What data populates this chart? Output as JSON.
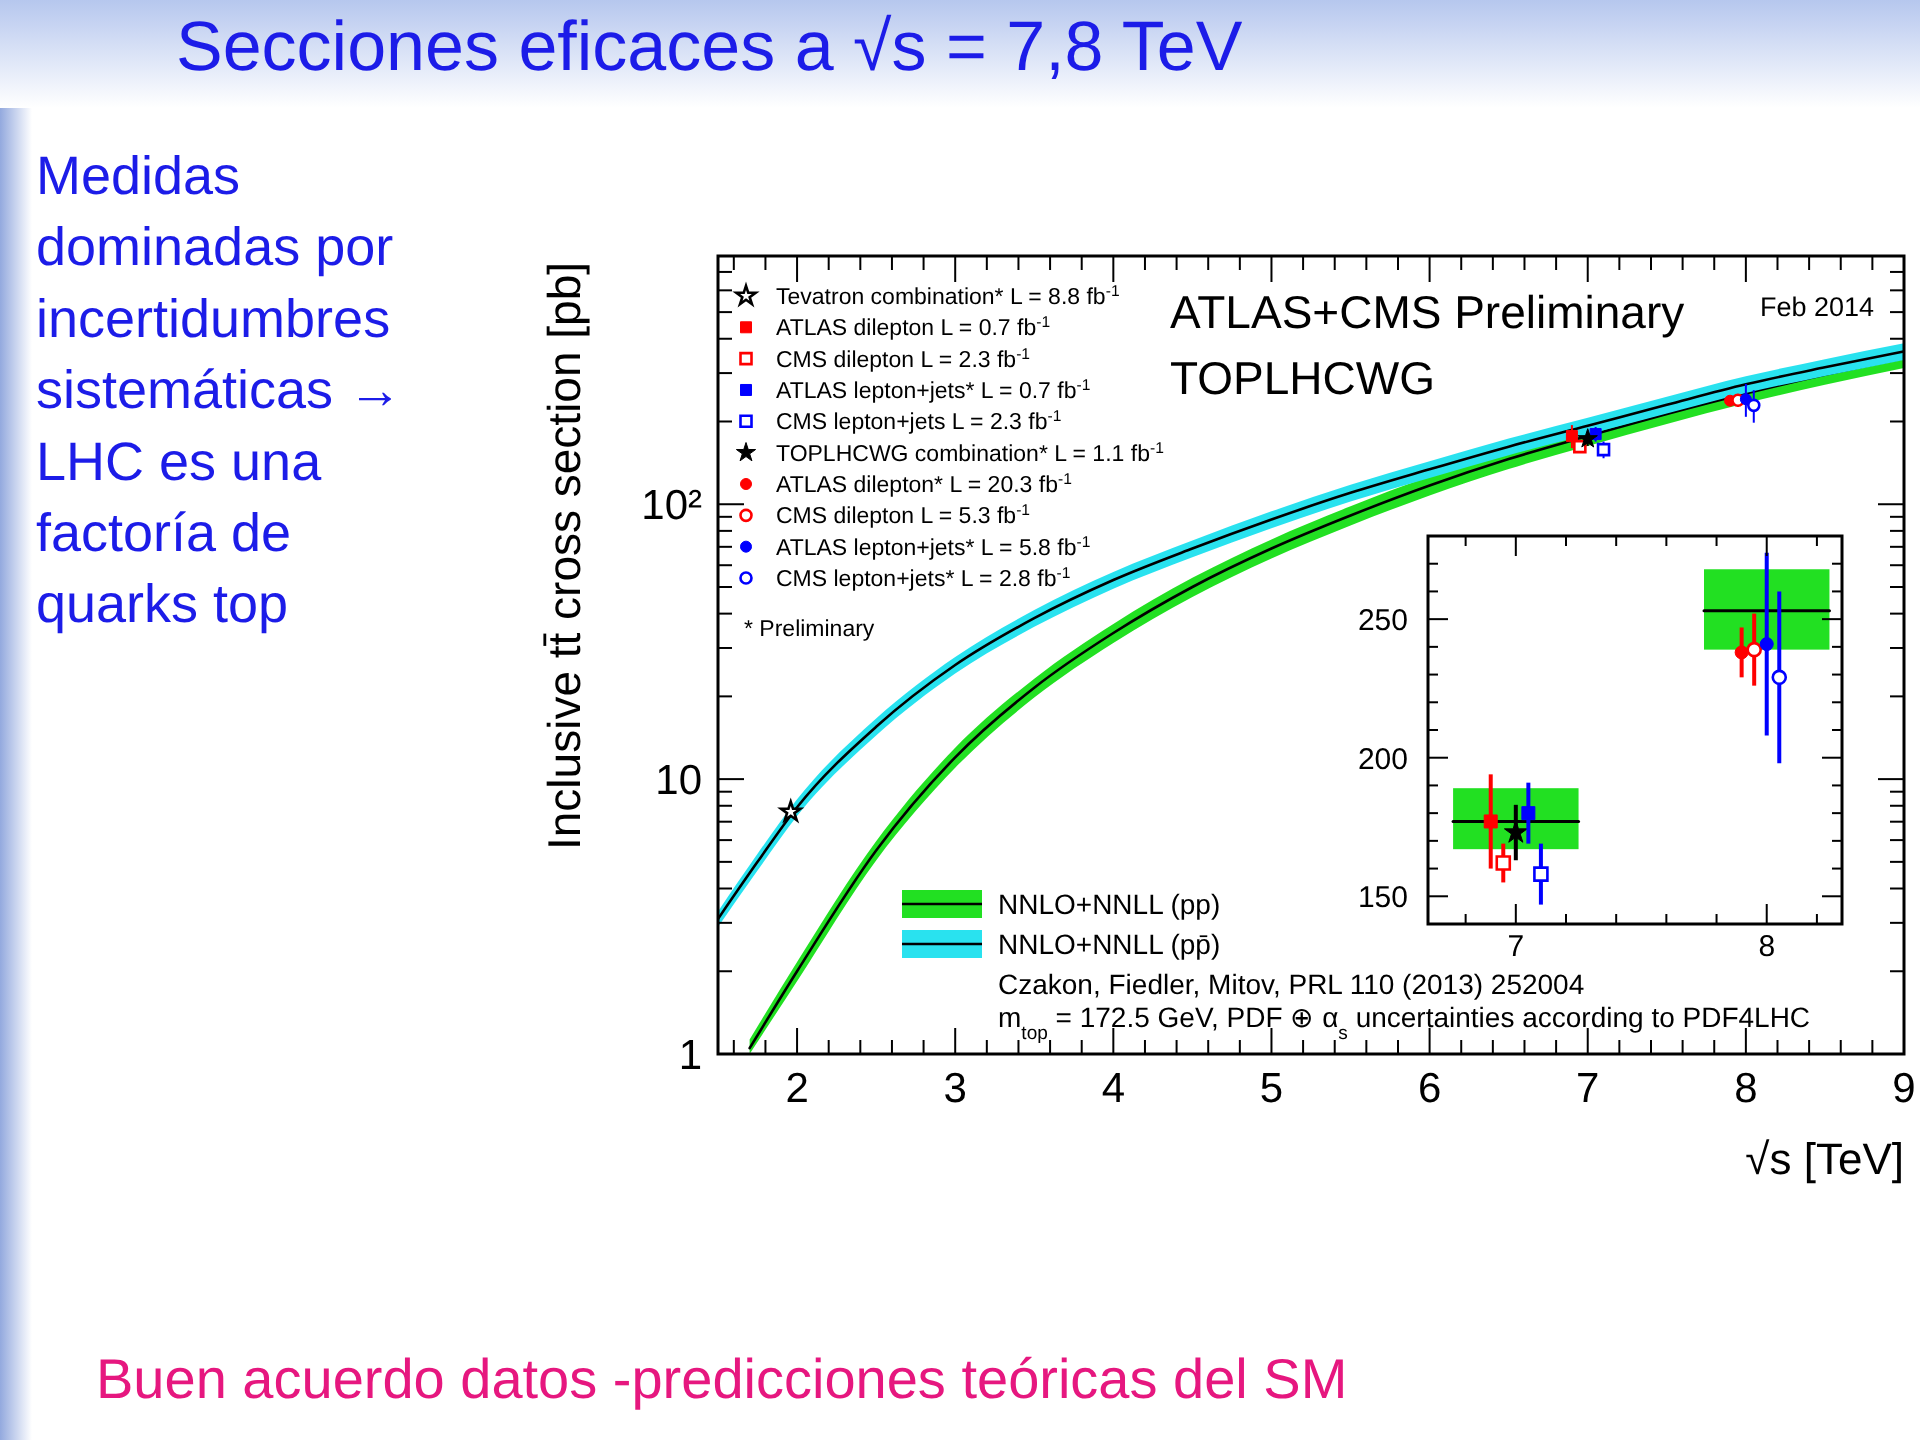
{
  "chart_data": [
    {
      "type": "line",
      "title": "Secciones eficaces a √s = 7,8 TeV",
      "xlabel": "√s [TeV]",
      "ylabel": "Inclusive tt̄ cross section [pb]",
      "log": "y",
      "xlim": [
        1.5,
        9
      ],
      "ylim": [
        1,
        800
      ],
      "xticks": [
        {
          "value": 1.6,
          "label": null
        },
        {
          "value": 1.8,
          "label": null
        },
        2,
        {
          "value": 2.2,
          "label": null
        },
        {
          "value": 2.4,
          "label": null
        },
        {
          "value": 2.6,
          "label": null
        },
        {
          "value": 2.8,
          "label": null
        },
        3,
        {
          "value": 3.2,
          "label": null
        },
        {
          "value": 3.4,
          "label": null
        },
        {
          "value": 3.6,
          "label": null
        },
        {
          "value": 3.8,
          "label": null
        },
        4,
        {
          "value": 4.2,
          "label": null
        },
        {
          "value": 4.4,
          "label": null
        },
        {
          "value": 4.6,
          "label": null
        },
        {
          "value": 4.8,
          "label": null
        },
        5,
        {
          "value": 5.2,
          "label": null
        },
        {
          "value": 5.4,
          "label": null
        },
        {
          "value": 5.6,
          "label": null
        },
        {
          "value": 5.8,
          "label": null
        },
        6,
        {
          "value": 6.2,
          "label": null
        },
        {
          "value": 6.4,
          "label": null
        },
        {
          "value": 6.6,
          "label": null
        },
        {
          "value": 6.8,
          "label": null
        },
        7,
        {
          "value": 7.2,
          "label": null
        },
        {
          "value": 7.4,
          "label": null
        },
        {
          "value": 7.6,
          "label": null
        },
        {
          "value": 7.8,
          "label": null
        },
        8,
        {
          "value": 8.2,
          "label": null
        },
        {
          "value": 8.4,
          "label": null
        },
        {
          "value": 8.6,
          "label": null
        },
        {
          "value": 8.8,
          "label": null
        },
        9
      ],
      "yticks": [
        1,
        {
          "value": 2,
          "label": null
        },
        {
          "value": 3,
          "label": null
        },
        {
          "value": 4,
          "label": null
        },
        {
          "value": 5,
          "label": null
        },
        {
          "value": 6,
          "label": null
        },
        {
          "value": 7,
          "label": null
        },
        {
          "value": 8,
          "label": null
        },
        {
          "value": 9,
          "label": null
        },
        10,
        {
          "value": 20,
          "label": null
        },
        {
          "value": 30,
          "label": null
        },
        {
          "value": 40,
          "label": null
        },
        {
          "value": 50,
          "label": null
        },
        {
          "value": 60,
          "label": null
        },
        {
          "value": 70,
          "label": null
        },
        {
          "value": 80,
          "label": null
        },
        {
          "value": 90,
          "label": null
        },
        {
          "value": 100,
          "label": "10²"
        },
        {
          "value": 200,
          "label": null
        },
        {
          "value": 300,
          "label": null
        },
        {
          "value": 400,
          "label": null
        },
        {
          "value": 500,
          "label": null
        },
        {
          "value": 600,
          "label": null
        },
        {
          "value": 700,
          "label": null
        }
      ],
      "legend": "top left",
      "annotations": [
        "ATLAS+CMS Preliminary",
        "TOPLHCWG",
        "Feb 2014",
        "* Preliminary",
        "Czakon, Fiedler, Mitov, PRL 110 (2013) 252004",
        "m$_{top}$ = 172.5 GeV, PDF ⊕ α$_{s}$ uncertainties according to PDF4LHC",
        "Medidas dominadas por incertidumbres sistemáticas → LHC es una factoría de quarks top",
        "Buen acuerdo datos -predicciones teóricas del SM"
      ],
      "series": [
        {
          "name": "NNLO+NNLL (pp)",
          "color": "#000000",
          "colors": [
            "#22e022",
            "#22e022",
            "#22e022",
            "#22e022",
            "#22e022",
            "#22e022",
            "#22e022",
            "#22e022",
            "#22e022",
            "#22e022",
            "#22e022",
            "#22e022",
            "#22e022",
            "#22e022",
            "#22e022",
            "#22e022"
          ],
          "x": [
            1.7,
            2,
            2.5,
            3,
            3.5,
            4,
            4.5,
            5,
            5.5,
            6,
            6.5,
            7,
            7.5,
            8,
            8.5,
            9
          ],
          "values": [
            1.05,
            2.0,
            5.5,
            12,
            21.5,
            34,
            50,
            69,
            91,
            117,
            146,
            177,
            213,
            253,
            296,
            340
          ],
          "lower": [
            1.0,
            1.84,
            5.06,
            11.0,
            19.8,
            31.3,
            46,
            63.5,
            83.7,
            107.6,
            134.3,
            163,
            196,
            233,
            272,
            313
          ],
          "upper": [
            1.13,
            2.16,
            5.94,
            13.0,
            23.2,
            36.7,
            54,
            74.5,
            98.3,
            126.4,
            157.7,
            191,
            230,
            273,
            320,
            367
          ]
        },
        {
          "name": "NNLO+NNLL (pp̄)",
          "color": "#000000",
          "colors": [
            "#29e2ef",
            "#29e2ef",
            "#29e2ef",
            "#29e2ef",
            "#29e2ef",
            "#29e2ef",
            "#29e2ef",
            "#29e2ef",
            "#29e2ef",
            "#29e2ef",
            "#29e2ef",
            "#29e2ef",
            "#29e2ef",
            "#29e2ef",
            "#29e2ef",
            "#29e2ef",
            "#29e2ef"
          ],
          "x": [
            1.5,
            1.75,
            2,
            2.5,
            3,
            3.5,
            4,
            4.5,
            5,
            5.5,
            6,
            6.5,
            7,
            7.5,
            8,
            8.5,
            9
          ],
          "values": [
            3.1,
            5.0,
            7.9,
            15.5,
            26,
            38.5,
            53,
            69,
            88,
            110,
            134,
            162,
            193,
            230,
            273,
            315,
            360
          ],
          "lower": [
            2.9,
            4.65,
            7.35,
            14.4,
            24.2,
            35.8,
            49.3,
            64.2,
            81.8,
            102.3,
            124.6,
            150.7,
            179.5,
            214,
            254,
            293,
            335
          ],
          "upper": [
            3.3,
            5.35,
            8.45,
            16.6,
            27.8,
            41.2,
            56.7,
            73.8,
            94.2,
            117.7,
            143.4,
            173.3,
            206.5,
            246,
            292,
            337,
            385
          ]
        },
        {
          "type": "scatter",
          "name": "Tevatron combination* L = 8.8 fb$^{-1}$",
          "color": "#000000",
          "marker": "star-open",
          "x": [
            1.96
          ],
          "values": [
            7.6
          ]
        },
        {
          "type": "scatter",
          "name": "ATLAS dilepton L = 0.7 fb$^{-1}$",
          "color": "#ff0000",
          "marker": "square",
          "x": [
            6.9
          ],
          "values": [
            177
          ],
          "errors": [
            17
          ]
        },
        {
          "type": "scatter",
          "name": "CMS dilepton L = 2.3 fb$^{-1}$",
          "color": "#ff0000",
          "marker": "square-open",
          "x": [
            6.95
          ],
          "values": [
            162
          ],
          "errors": [
            7
          ]
        },
        {
          "type": "scatter",
          "name": "ATLAS lepton+jets* L = 0.7 fb$^{-1}$",
          "color": "#0000ff",
          "marker": "square",
          "x": [
            7.05
          ],
          "values": [
            180
          ],
          "errors": [
            11
          ]
        },
        {
          "type": "scatter",
          "name": "CMS lepton+jets L = 2.3 fb$^{-1}$",
          "color": "#0000ff",
          "marker": "square-open",
          "x": [
            7.1
          ],
          "values": [
            158
          ],
          "errors": [
            11
          ]
        },
        {
          "type": "scatter",
          "name": "TOPLHCWG combination* L = 1.1 fb$^{-1}$",
          "color": "#000000",
          "marker": "star",
          "x": [
            7.0
          ],
          "values": [
            173
          ],
          "errors": [
            10
          ]
        },
        {
          "type": "scatter",
          "name": "ATLAS dilepton* L = 20.3 fb$^{-1}$",
          "color": "#ff0000",
          "marker": "circle",
          "x": [
            7.9
          ],
          "values": [
            238
          ],
          "errors": [
            9
          ]
        },
        {
          "type": "scatter",
          "name": "CMS dilepton L = 5.3 fb$^{-1}$",
          "color": "#ff0000",
          "marker": "circle-open",
          "x": [
            7.95
          ],
          "values": [
            239
          ],
          "errors": [
            13
          ]
        },
        {
          "type": "scatter",
          "name": "ATLAS lepton+jets* L = 5.8 fb$^{-1}$",
          "color": "#0000ff",
          "marker": "circle",
          "x": [
            8.0
          ],
          "values": [
            241
          ],
          "errors": [
            33
          ]
        },
        {
          "type": "scatter",
          "name": "CMS lepton+jets* L = 2.8 fb$^{-1}$",
          "color": "#0000ff",
          "marker": "circle-open",
          "x": [
            8.05
          ],
          "values": [
            229
          ],
          "errors": [
            31
          ]
        }
      ]
    },
    {
      "type": "scatter",
      "xlim": [
        6.65,
        8.3
      ],
      "ylim": [
        140,
        280
      ],
      "xticks": [
        {
          "value": 6.8,
          "label": null
        },
        7,
        {
          "value": 7.2,
          "label": null
        },
        {
          "value": 7.4,
          "label": null
        },
        {
          "value": 7.6,
          "label": null
        },
        {
          "value": 7.8,
          "label": null
        },
        8,
        {
          "value": 8.2,
          "label": null
        }
      ],
      "yticks": [
        150,
        {
          "value": 160,
          "label": null
        },
        {
          "value": 170,
          "label": null
        },
        {
          "value": 180,
          "label": null
        },
        {
          "value": 190,
          "label": null
        },
        200,
        {
          "value": 210,
          "label": null
        },
        {
          "value": 220,
          "label": null
        },
        {
          "value": 230,
          "label": null
        },
        {
          "value": 240,
          "label": null
        },
        250,
        {
          "value": 260,
          "label": null
        },
        {
          "value": 270,
          "label": null
        }
      ],
      "series": [
        {
          "type": "bar",
          "color": "#22e022",
          "x": [
            7,
            8
          ],
          "base": [
            167,
            239
          ],
          "values": [
            22,
            29
          ]
        },
        {
          "type": "line",
          "color": "#000000",
          "x": [
            6.75,
            7.25
          ],
          "values": [
            177,
            177
          ]
        },
        {
          "type": "line",
          "color": "#000000",
          "x": [
            7.75,
            8.25
          ],
          "values": [
            253,
            253
          ]
        },
        {
          "color": "#ff0000",
          "marker": "square",
          "x": [
            6.9
          ],
          "values": [
            177
          ],
          "errors": [
            17
          ]
        },
        {
          "color": "#ff0000",
          "marker": "square-open",
          "x": [
            6.95
          ],
          "values": [
            162
          ],
          "errors": [
            7
          ]
        },
        {
          "color": "#000000",
          "marker": "star",
          "x": [
            7.0
          ],
          "values": [
            173
          ],
          "errors": [
            10
          ]
        },
        {
          "color": "#0000ff",
          "marker": "square",
          "x": [
            7.05
          ],
          "values": [
            180
          ],
          "errors": [
            11
          ]
        },
        {
          "color": "#0000ff",
          "marker": "square-open",
          "x": [
            7.1
          ],
          "values": [
            158
          ],
          "errors": [
            11
          ]
        },
        {
          "color": "#ff0000",
          "marker": "circle",
          "x": [
            7.9
          ],
          "values": [
            238
          ],
          "errors": [
            9
          ]
        },
        {
          "color": "#ff0000",
          "marker": "circle-open",
          "x": [
            7.95
          ],
          "values": [
            239
          ],
          "errors": [
            13
          ]
        },
        {
          "color": "#0000ff",
          "marker": "circle",
          "x": [
            8.0
          ],
          "values": [
            241
          ],
          "errors": [
            33
          ]
        },
        {
          "color": "#0000ff",
          "marker": "circle-open",
          "x": [
            8.05
          ],
          "values": [
            229
          ],
          "errors": [
            31
          ]
        }
      ]
    }
  ]
}
